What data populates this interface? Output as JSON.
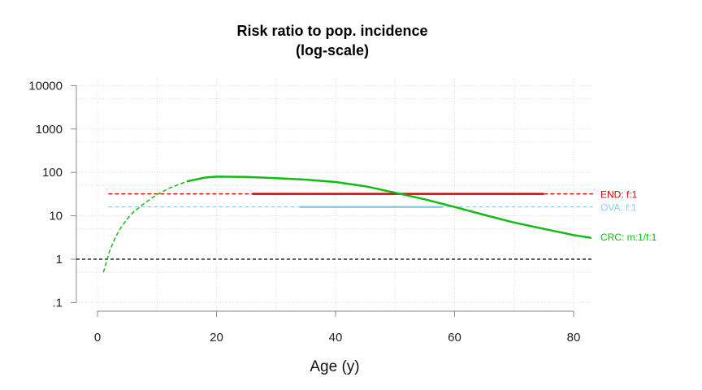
{
  "chart_data": {
    "type": "line",
    "title": "Risk ratio to pop. incidence",
    "subtitle": "(log-scale)",
    "xlabel": "Age (y)",
    "ylabel": "",
    "xlim": [
      0,
      83
    ],
    "ylim": [
      0.1,
      10000
    ],
    "y_scale": "log",
    "grid": true,
    "x_ticks": [
      0,
      20,
      40,
      60,
      80
    ],
    "x_tick_labels": [
      "0",
      "20",
      "40",
      "60",
      "80"
    ],
    "y_ticks": [
      0.1,
      1,
      10,
      100,
      1000,
      10000
    ],
    "y_tick_labels": [
      ".1",
      "1",
      "10",
      "100",
      "1000",
      "10000"
    ],
    "reference_line": {
      "y": 1,
      "color": "#000000",
      "style": "dashed"
    },
    "series": [
      {
        "name": "END: f:1",
        "color": "#dd0000",
        "dashed_range": [
          1,
          83
        ],
        "dashed_value": 32,
        "solid_range": [
          26,
          75
        ],
        "solid_value": 32
      },
      {
        "name": "OVA: f:1",
        "color": "#87ceeb",
        "dashed_range": [
          1,
          83
        ],
        "dashed_value": 16,
        "solid_range": [
          34,
          58
        ],
        "solid_value": 16
      },
      {
        "name": "CRC: m:1/f:1",
        "color": "#11bb11",
        "dashed_until": 15,
        "x": [
          1,
          2,
          3,
          4,
          5,
          6,
          8,
          10,
          12,
          15,
          18,
          20,
          25,
          30,
          35,
          40,
          45,
          50,
          55,
          60,
          65,
          70,
          75,
          80,
          83
        ],
        "y": [
          0.5,
          1.5,
          3.2,
          5.5,
          8.5,
          12,
          20,
          31,
          43,
          62,
          76,
          80,
          79,
          74,
          68,
          60,
          48,
          34,
          24,
          16,
          10.5,
          7,
          5,
          3.6,
          3.1
        ]
      }
    ]
  }
}
